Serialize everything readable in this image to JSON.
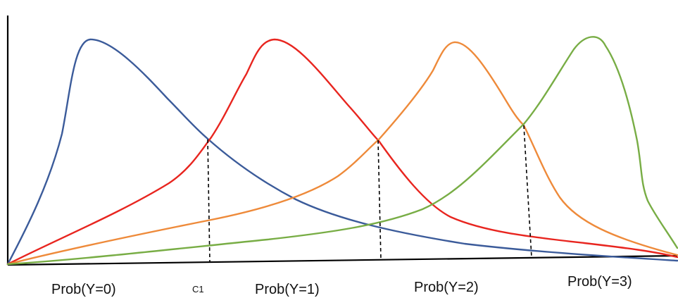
{
  "diagram": {
    "curves": [
      {
        "name": "curve-y0",
        "color": "#3b5b9a"
      },
      {
        "name": "curve-y1",
        "color": "#e8251f"
      },
      {
        "name": "curve-y2",
        "color": "#ee8a3a"
      },
      {
        "name": "curve-y3",
        "color": "#78ad45"
      }
    ],
    "labels": {
      "y0": "Prob(Y=0)",
      "c1": "C1",
      "y1": "Prob(Y=1)",
      "y2": "Prob(Y=2)",
      "y3": "Prob(Y=3)"
    }
  }
}
